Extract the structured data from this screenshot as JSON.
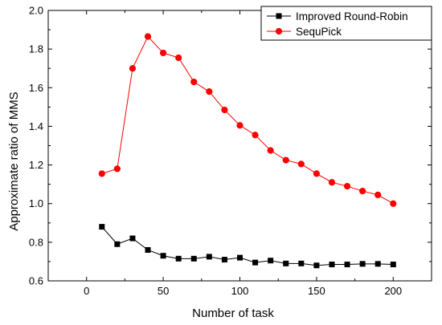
{
  "chart_data": {
    "type": "line",
    "xlabel": "Number of task",
    "ylabel": "Approximate ratio of MMS",
    "xlim": [
      -25,
      225
    ],
    "ylim": [
      0.6,
      2.0
    ],
    "xticks": [
      0,
      50,
      100,
      150,
      200
    ],
    "yticks": [
      0.6,
      0.8,
      1.0,
      1.2,
      1.4,
      1.6,
      1.8,
      2.0
    ],
    "xtick_labels": [
      "0",
      "50",
      "100",
      "150",
      "200"
    ],
    "ytick_labels": [
      "0.6",
      "0.8",
      "1.0",
      "1.2",
      "1.4",
      "1.6",
      "1.8",
      "2.0"
    ],
    "grid": false,
    "legend_position": "top-right",
    "x": [
      10,
      20,
      30,
      40,
      50,
      60,
      70,
      80,
      90,
      100,
      110,
      120,
      130,
      140,
      150,
      160,
      170,
      180,
      190,
      200
    ],
    "series": [
      {
        "name": "Improved Round-Robin",
        "color": "#000000",
        "marker": "square",
        "values": [
          0.88,
          0.79,
          0.82,
          0.76,
          0.73,
          0.715,
          0.715,
          0.725,
          0.71,
          0.72,
          0.695,
          0.705,
          0.69,
          0.69,
          0.68,
          0.685,
          0.685,
          0.688,
          0.688,
          0.685
        ]
      },
      {
        "name": "SequPick",
        "color": "#ff0000",
        "marker": "circle",
        "values": [
          1.155,
          1.18,
          1.7,
          1.865,
          1.78,
          1.755,
          1.63,
          1.58,
          1.485,
          1.405,
          1.355,
          1.275,
          1.225,
          1.205,
          1.155,
          1.11,
          1.09,
          1.065,
          1.045,
          1.0
        ]
      }
    ]
  }
}
